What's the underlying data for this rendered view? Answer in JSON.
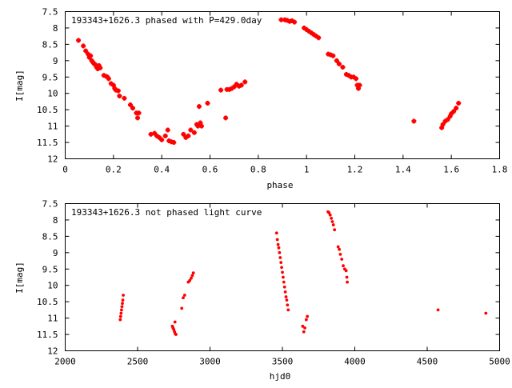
{
  "chart_data": [
    {
      "type": "scatter",
      "title": "193343+1626.3 phased with P=429.0day",
      "xlabel": "phase",
      "ylabel": "I[mag]",
      "xlim": [
        0,
        1.8
      ],
      "ylim": [
        7.5,
        12
      ],
      "y_inverted": true,
      "x_ticks": [
        "0",
        "0.2",
        "0.4",
        "0.6",
        "0.8",
        "1",
        "1.2",
        "1.4",
        "1.6",
        "1.8"
      ],
      "x_tick_values": [
        0,
        0.2,
        0.4,
        0.6,
        0.8,
        1.0,
        1.2,
        1.4,
        1.6,
        1.8
      ],
      "y_ticks": [
        "7.5",
        "8",
        "8.5",
        "9",
        "9.5",
        "10",
        "10.5",
        "11",
        "11.5",
        "12"
      ],
      "y_tick_values": [
        7.5,
        8,
        8.5,
        9,
        9.5,
        10,
        10.5,
        11,
        11.5,
        12
      ],
      "marker_color": "#ff0000",
      "points": [
        [
          0.055,
          8.38
        ],
        [
          0.075,
          8.55
        ],
        [
          0.085,
          8.7
        ],
        [
          0.095,
          8.8
        ],
        [
          0.1,
          8.9
        ],
        [
          0.105,
          8.85
        ],
        [
          0.11,
          9.0
        ],
        [
          0.115,
          9.05
        ],
        [
          0.12,
          9.1
        ],
        [
          0.125,
          9.12
        ],
        [
          0.13,
          9.2
        ],
        [
          0.135,
          9.25
        ],
        [
          0.14,
          9.15
        ],
        [
          0.145,
          9.22
        ],
        [
          0.16,
          9.45
        ],
        [
          0.17,
          9.48
        ],
        [
          0.175,
          9.5
        ],
        [
          0.18,
          9.55
        ],
        [
          0.19,
          9.7
        ],
        [
          0.2,
          9.75
        ],
        [
          0.205,
          9.85
        ],
        [
          0.21,
          9.9
        ],
        [
          0.22,
          9.92
        ],
        [
          0.225,
          10.08
        ],
        [
          0.245,
          10.15
        ],
        [
          0.27,
          10.35
        ],
        [
          0.28,
          10.45
        ],
        [
          0.295,
          10.6
        ],
        [
          0.3,
          10.75
        ],
        [
          0.305,
          10.6
        ],
        [
          0.355,
          11.25
        ],
        [
          0.37,
          11.22
        ],
        [
          0.38,
          11.3
        ],
        [
          0.39,
          11.35
        ],
        [
          0.4,
          11.42
        ],
        [
          0.415,
          11.3
        ],
        [
          0.425,
          11.12
        ],
        [
          0.43,
          11.45
        ],
        [
          0.44,
          11.48
        ],
        [
          0.45,
          11.5
        ],
        [
          0.49,
          11.25
        ],
        [
          0.5,
          11.35
        ],
        [
          0.51,
          11.3
        ],
        [
          0.52,
          11.12
        ],
        [
          0.535,
          11.2
        ],
        [
          0.545,
          10.95
        ],
        [
          0.55,
          11.0
        ],
        [
          0.56,
          10.9
        ],
        [
          0.565,
          11.0
        ],
        [
          0.555,
          10.4
        ],
        [
          0.59,
          10.3
        ],
        [
          0.645,
          9.9
        ],
        [
          0.665,
          10.75
        ],
        [
          0.67,
          9.88
        ],
        [
          0.68,
          9.88
        ],
        [
          0.69,
          9.85
        ],
        [
          0.7,
          9.8
        ],
        [
          0.71,
          9.72
        ],
        [
          0.72,
          9.78
        ],
        [
          0.73,
          9.75
        ],
        [
          0.745,
          9.65
        ],
        [
          0.895,
          7.75
        ],
        [
          0.91,
          7.75
        ],
        [
          0.92,
          7.77
        ],
        [
          0.93,
          7.8
        ],
        [
          0.94,
          7.78
        ],
        [
          0.95,
          7.82
        ],
        [
          0.99,
          8.0
        ],
        [
          1.0,
          8.05
        ],
        [
          1.01,
          8.1
        ],
        [
          1.02,
          8.15
        ],
        [
          1.03,
          8.2
        ],
        [
          1.04,
          8.25
        ],
        [
          1.05,
          8.3
        ],
        [
          1.09,
          8.8
        ],
        [
          1.1,
          8.82
        ],
        [
          1.11,
          8.85
        ],
        [
          1.125,
          9.0
        ],
        [
          1.135,
          9.1
        ],
        [
          1.15,
          9.2
        ],
        [
          1.165,
          9.42
        ],
        [
          1.175,
          9.45
        ],
        [
          1.185,
          9.5
        ],
        [
          1.195,
          9.5
        ],
        [
          1.205,
          9.55
        ],
        [
          1.21,
          9.75
        ],
        [
          1.215,
          9.85
        ],
        [
          1.22,
          9.75
        ],
        [
          1.445,
          10.85
        ],
        [
          1.56,
          11.05
        ],
        [
          1.565,
          10.95
        ],
        [
          1.575,
          10.85
        ],
        [
          1.585,
          10.8
        ],
        [
          1.595,
          10.7
        ],
        [
          1.6,
          10.62
        ],
        [
          1.61,
          10.55
        ],
        [
          1.62,
          10.45
        ],
        [
          1.63,
          10.3
        ]
      ]
    },
    {
      "type": "scatter",
      "title": "193343+1626.3 not phased light curve",
      "xlabel": "hjd0",
      "ylabel": "I[mag]",
      "xlim": [
        2000,
        5000
      ],
      "ylim": [
        7.5,
        12
      ],
      "y_inverted": true,
      "x_ticks": [
        "2000",
        "2500",
        "3000",
        "3500",
        "4000",
        "4500",
        "5000"
      ],
      "x_tick_values": [
        2000,
        2500,
        3000,
        3500,
        4000,
        4500,
        5000
      ],
      "y_ticks": [
        "7.5",
        "8",
        "8.5",
        "9",
        "9.5",
        "10",
        "10.5",
        "11",
        "11.5",
        "12"
      ],
      "y_tick_values": [
        7.5,
        8,
        8.5,
        9,
        9.5,
        10,
        10.5,
        11,
        11.5,
        12
      ],
      "marker_color": "#ff0000",
      "points": [
        [
          2380,
          11.05
        ],
        [
          2383,
          10.95
        ],
        [
          2386,
          10.85
        ],
        [
          2389,
          10.75
        ],
        [
          2392,
          10.65
        ],
        [
          2395,
          10.55
        ],
        [
          2398,
          10.45
        ],
        [
          2401,
          10.3
        ],
        [
          2740,
          11.25
        ],
        [
          2745,
          11.3
        ],
        [
          2750,
          11.35
        ],
        [
          2755,
          11.42
        ],
        [
          2760,
          11.48
        ],
        [
          2765,
          11.5
        ],
        [
          2758,
          11.12
        ],
        [
          2805,
          10.7
        ],
        [
          2815,
          10.38
        ],
        [
          2825,
          10.3
        ],
        [
          2850,
          9.9
        ],
        [
          2860,
          9.85
        ],
        [
          2870,
          9.78
        ],
        [
          2878,
          9.7
        ],
        [
          2885,
          9.62
        ],
        [
          3460,
          8.4
        ],
        [
          3465,
          8.6
        ],
        [
          3470,
          8.75
        ],
        [
          3475,
          8.85
        ],
        [
          3480,
          9.0
        ],
        [
          3485,
          9.15
        ],
        [
          3490,
          9.3
        ],
        [
          3495,
          9.45
        ],
        [
          3500,
          9.6
        ],
        [
          3505,
          9.75
        ],
        [
          3510,
          9.9
        ],
        [
          3515,
          10.05
        ],
        [
          3520,
          10.2
        ],
        [
          3525,
          10.35
        ],
        [
          3530,
          10.45
        ],
        [
          3535,
          10.6
        ],
        [
          3540,
          10.75
        ],
        [
          3640,
          11.25
        ],
        [
          3648,
          11.42
        ],
        [
          3655,
          11.3
        ],
        [
          3665,
          11.05
        ],
        [
          3672,
          10.95
        ],
        [
          3815,
          7.75
        ],
        [
          3822,
          7.78
        ],
        [
          3830,
          7.85
        ],
        [
          3838,
          7.95
        ],
        [
          3845,
          8.05
        ],
        [
          3852,
          8.15
        ],
        [
          3860,
          8.3
        ],
        [
          3885,
          8.82
        ],
        [
          3893,
          8.9
        ],
        [
          3900,
          9.05
        ],
        [
          3910,
          9.2
        ],
        [
          3920,
          9.4
        ],
        [
          3930,
          9.5
        ],
        [
          3940,
          9.55
        ],
        [
          3945,
          9.75
        ],
        [
          3948,
          9.9
        ],
        [
          4575,
          10.75
        ],
        [
          4905,
          10.85
        ]
      ]
    }
  ]
}
